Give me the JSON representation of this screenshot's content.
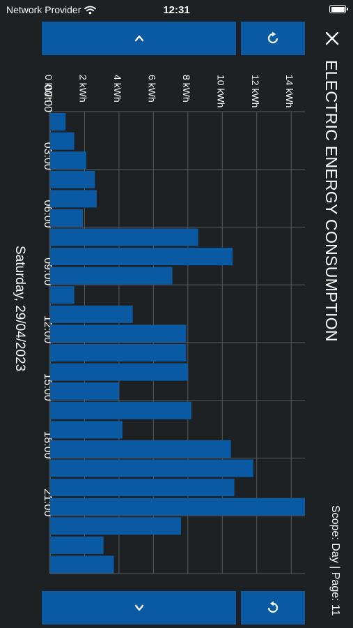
{
  "status_bar": {
    "carrier": "Network Provider",
    "time": "12:31"
  },
  "header": {
    "title": "ELECTRIC ENERGY CONSUMPTION",
    "scope_text": "Scope: Day | Page: 11"
  },
  "date_label": "Saturday, 29/04/2023",
  "colors": {
    "bar": "#0a5aa3",
    "background": "#1d2123",
    "grid": "#555a5d",
    "text": "#ffffff"
  },
  "icons": {
    "close": "close-icon",
    "prev": "chevron-up-icon",
    "next": "chevron-down-icon",
    "refresh": "refresh-icon"
  },
  "chart_data": {
    "type": "bar",
    "title": "",
    "xlabel": "",
    "ylabel": "",
    "ylim": [
      0,
      14.8
    ],
    "grid": true,
    "categories": [
      "00:00",
      "01:00",
      "02:00",
      "03:00",
      "04:00",
      "05:00",
      "06:00",
      "07:00",
      "08:00",
      "09:00",
      "10:00",
      "11:00",
      "12:00",
      "13:00",
      "14:00",
      "15:00",
      "16:00",
      "17:00",
      "18:00",
      "19:00",
      "20:00",
      "21:00",
      "22:00",
      "23:00"
    ],
    "x_tick_labels": [
      "00:00",
      "03:00",
      "06:00",
      "09:00",
      "12:00",
      "15:00",
      "18:00",
      "21:00"
    ],
    "y_tick_labels": [
      "0 kWh",
      "2 kWh",
      "4 kWh",
      "6 kWh",
      "8 kWh",
      "10 kWh",
      "12 kWh",
      "14 kWh"
    ],
    "y_ticks": [
      0,
      2,
      4,
      6,
      8,
      10,
      12,
      14
    ],
    "values": [
      0.9,
      1.4,
      2.1,
      2.6,
      2.7,
      1.9,
      8.6,
      10.6,
      7.1,
      1.4,
      4.8,
      7.9,
      7.9,
      8.0,
      4.0,
      8.2,
      4.2,
      10.5,
      11.8,
      10.7,
      14.8,
      7.6,
      3.1,
      3.7
    ]
  }
}
